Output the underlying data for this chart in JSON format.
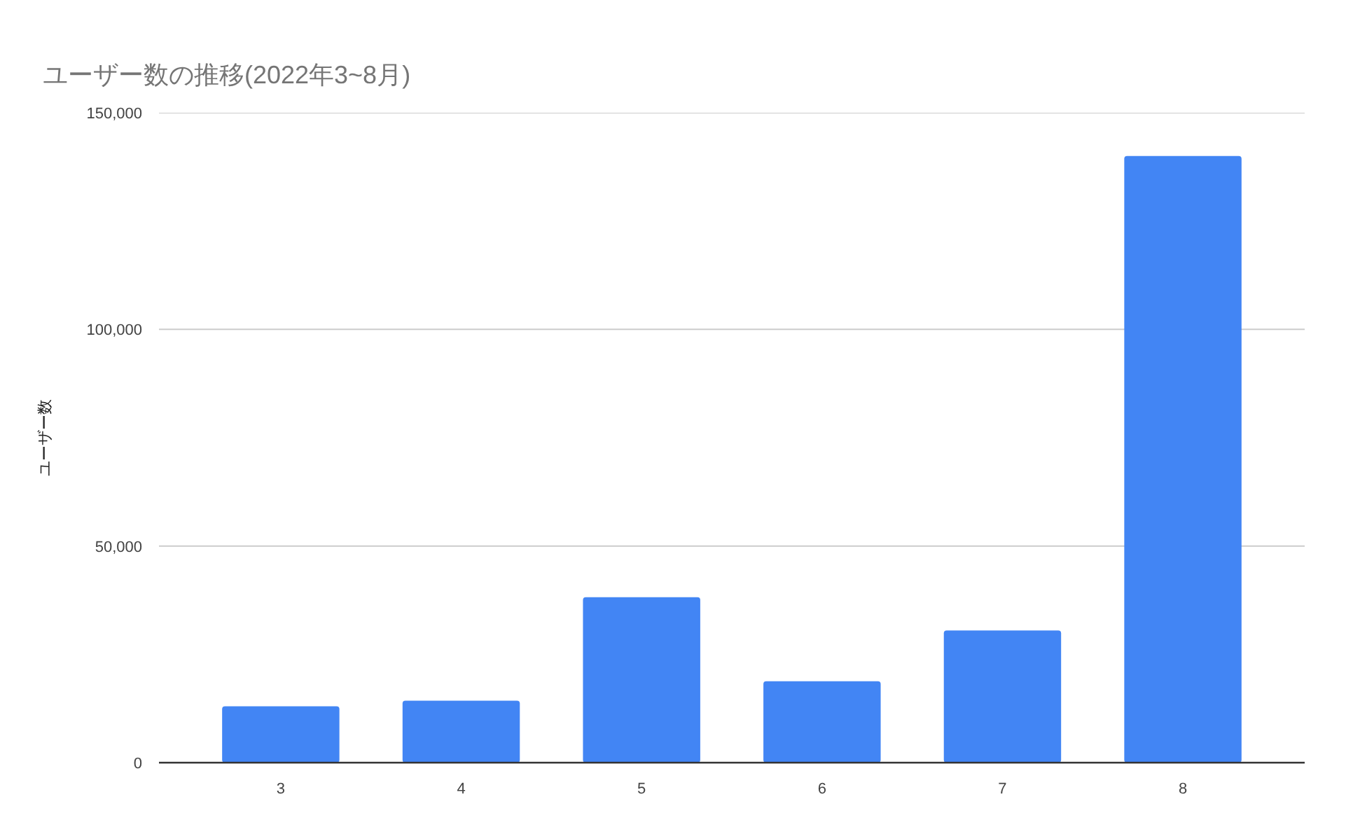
{
  "chart_data": {
    "type": "bar",
    "title": "ユーザー数の推移(2022年3~8月)",
    "ylabel": "ユーザー数",
    "categories": [
      "3",
      "4",
      "5",
      "6",
      "7",
      "8"
    ],
    "values": [
      13000,
      14300,
      38200,
      18800,
      30500,
      140000
    ],
    "color": "#4285f4",
    "ylim": [
      0,
      150000
    ],
    "yticks": [
      0,
      {
        "value": 50000,
        "label": "50,000"
      },
      {
        "value": 100000,
        "label": "100,000"
      },
      {
        "value": 150000,
        "label": "150,000"
      }
    ],
    "grid": "y"
  }
}
